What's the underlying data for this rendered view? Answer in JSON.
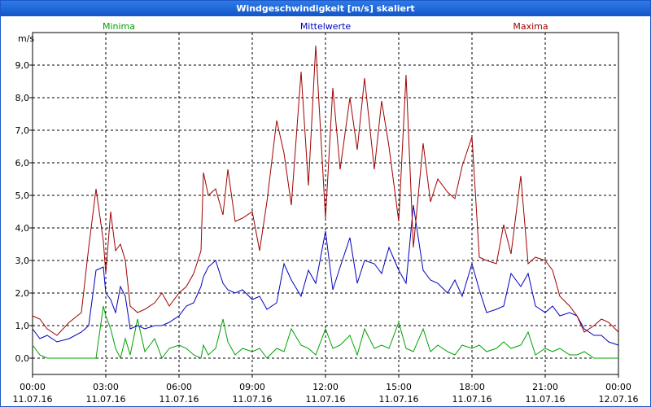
{
  "chart_data": {
    "type": "line",
    "title": "Windgeschwindigkeit [m/s] skaliert",
    "ylabel": "m/s",
    "ylim": [
      -0.5,
      10.0
    ],
    "xlim": [
      0,
      24
    ],
    "grid": true,
    "yticks": [
      "0,0",
      "1,0",
      "2,0",
      "3,0",
      "4,0",
      "5,0",
      "6,0",
      "7,0",
      "8,0",
      "9,0"
    ],
    "xticks": [
      {
        "time": "00:00",
        "date": "11.07.16"
      },
      {
        "time": "03:00",
        "date": "11.07.16"
      },
      {
        "time": "06:00",
        "date": "11.07.16"
      },
      {
        "time": "09:00",
        "date": "11.07.16"
      },
      {
        "time": "12:00",
        "date": "11.07.16"
      },
      {
        "time": "15:00",
        "date": "11.07.16"
      },
      {
        "time": "18:00",
        "date": "11.07.16"
      },
      {
        "time": "21:00",
        "date": "11.07.16"
      },
      {
        "time": "00:00",
        "date": "12.07.16"
      }
    ],
    "series": [
      {
        "name": "Minima",
        "color": "#00a000",
        "x": [
          0,
          0.3,
          0.6,
          1,
          1.5,
          2,
          2.3,
          2.6,
          2.9,
          3,
          3.2,
          3.4,
          3.6,
          3.8,
          4,
          4.3,
          4.6,
          5,
          5.3,
          5.6,
          6,
          6.3,
          6.6,
          6.9,
          7,
          7.2,
          7.5,
          7.8,
          8,
          8.3,
          8.6,
          9,
          9.3,
          9.6,
          10,
          10.3,
          10.6,
          11,
          11.3,
          11.6,
          12,
          12.3,
          12.6,
          13,
          13.3,
          13.6,
          14,
          14.3,
          14.6,
          15,
          15.3,
          15.6,
          16,
          16.3,
          16.6,
          17,
          17.3,
          17.6,
          18,
          18.3,
          18.6,
          19,
          19.3,
          19.6,
          20,
          20.3,
          20.6,
          21,
          21.3,
          21.6,
          22,
          22.3,
          22.6,
          23,
          23.3,
          23.6,
          24
        ],
        "values": [
          0.4,
          0.1,
          0,
          0,
          0,
          0,
          0,
          0,
          1.6,
          1.3,
          0.9,
          0.3,
          0,
          0.6,
          0.1,
          1.2,
          0.2,
          0.6,
          0,
          0.3,
          0.4,
          0.3,
          0.1,
          0,
          0.4,
          0.1,
          0.3,
          1.2,
          0.5,
          0.1,
          0.3,
          0.2,
          0.3,
          0,
          0.3,
          0.2,
          0.9,
          0.4,
          0.3,
          0.1,
          0.9,
          0.3,
          0.4,
          0.7,
          0.1,
          0.9,
          0.3,
          0.4,
          0.3,
          1.1,
          0.3,
          0.2,
          0.9,
          0.2,
          0.4,
          0.2,
          0.1,
          0.4,
          0.3,
          0.4,
          0.2,
          0.3,
          0.5,
          0.3,
          0.4,
          0.8,
          0.1,
          0.3,
          0.2,
          0.3,
          0.1,
          0.1,
          0.2,
          0,
          0,
          0,
          0
        ]
      },
      {
        "name": "Mittelwerte",
        "color": "#0000c0",
        "x": [
          0,
          0.3,
          0.6,
          1,
          1.5,
          2,
          2.3,
          2.6,
          2.9,
          3,
          3.2,
          3.4,
          3.6,
          3.8,
          4,
          4.3,
          4.6,
          5,
          5.3,
          5.6,
          6,
          6.3,
          6.6,
          6.9,
          7,
          7.2,
          7.5,
          7.8,
          8,
          8.3,
          8.6,
          9,
          9.3,
          9.6,
          10,
          10.3,
          10.6,
          11,
          11.3,
          11.6,
          12,
          12.3,
          12.6,
          13,
          13.3,
          13.6,
          14,
          14.3,
          14.6,
          15,
          15.3,
          15.6,
          16,
          16.3,
          16.6,
          17,
          17.3,
          17.6,
          18,
          18.3,
          18.6,
          19,
          19.3,
          19.6,
          20,
          20.3,
          20.6,
          21,
          21.3,
          21.6,
          22,
          22.3,
          22.6,
          23,
          23.3,
          23.6,
          24
        ],
        "values": [
          0.9,
          0.6,
          0.7,
          0.5,
          0.6,
          0.8,
          1.0,
          2.7,
          2.8,
          2.0,
          1.8,
          1.4,
          2.2,
          1.9,
          0.9,
          1.0,
          0.9,
          1.0,
          1.0,
          1.1,
          1.3,
          1.6,
          1.7,
          2.2,
          2.5,
          2.8,
          3.0,
          2.3,
          2.1,
          2.0,
          2.1,
          1.8,
          1.9,
          1.5,
          1.7,
          2.9,
          2.4,
          1.9,
          2.7,
          2.3,
          3.9,
          2.1,
          2.8,
          3.7,
          2.3,
          3.0,
          2.9,
          2.6,
          3.4,
          2.7,
          2.3,
          4.7,
          2.7,
          2.4,
          2.3,
          2.0,
          2.4,
          1.9,
          2.9,
          2.1,
          1.4,
          1.5,
          1.6,
          2.6,
          2.2,
          2.6,
          1.6,
          1.4,
          1.6,
          1.3,
          1.4,
          1.3,
          0.9,
          0.7,
          0.7,
          0.5,
          0.4
        ]
      },
      {
        "name": "Maxima",
        "color": "#a00000",
        "x": [
          0,
          0.3,
          0.6,
          1,
          1.5,
          2,
          2.3,
          2.6,
          2.9,
          3,
          3.2,
          3.4,
          3.6,
          3.8,
          4,
          4.3,
          4.6,
          5,
          5.3,
          5.6,
          6,
          6.3,
          6.6,
          6.9,
          7,
          7.2,
          7.5,
          7.8,
          8,
          8.3,
          8.6,
          9,
          9.3,
          9.6,
          10,
          10.3,
          10.6,
          11,
          11.3,
          11.6,
          12,
          12.3,
          12.6,
          13,
          13.3,
          13.6,
          14,
          14.3,
          14.6,
          15,
          15.3,
          15.6,
          16,
          16.3,
          16.6,
          17,
          17.3,
          17.6,
          18,
          18.3,
          18.6,
          19,
          19.3,
          19.6,
          20,
          20.3,
          20.6,
          21,
          21.3,
          21.6,
          22,
          22.3,
          22.6,
          23,
          23.3,
          23.6,
          24
        ],
        "values": [
          1.3,
          1.2,
          0.9,
          0.7,
          1.1,
          1.4,
          3.4,
          5.2,
          3.6,
          2.6,
          4.5,
          3.3,
          3.5,
          3.0,
          1.6,
          1.4,
          1.5,
          1.7,
          2.0,
          1.6,
          2.0,
          2.2,
          2.6,
          3.3,
          5.7,
          5.0,
          5.2,
          4.4,
          5.8,
          4.2,
          4.3,
          4.5,
          3.3,
          4.8,
          7.3,
          6.3,
          4.7,
          8.8,
          5.3,
          9.6,
          4.3,
          8.3,
          5.8,
          8.0,
          6.4,
          8.6,
          5.8,
          7.9,
          6.5,
          4.2,
          8.7,
          3.4,
          6.6,
          4.8,
          5.5,
          5.1,
          4.9,
          5.9,
          6.8,
          3.1,
          3.0,
          2.9,
          4.1,
          3.2,
          5.6,
          2.9,
          3.1,
          3.0,
          2.7,
          1.9,
          1.6,
          1.3,
          0.8,
          1.0,
          1.2,
          1.1,
          0.8
        ]
      }
    ]
  }
}
